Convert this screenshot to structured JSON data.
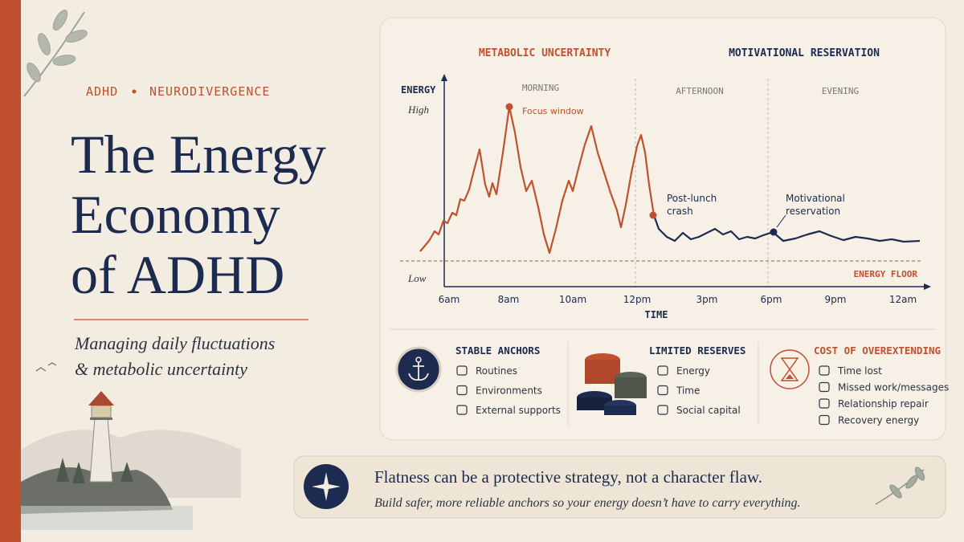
{
  "header": {
    "eyebrow": [
      "ADHD",
      "NEURODIVERGENCE"
    ],
    "title": [
      "The Energy",
      "Economy",
      "of ADHD"
    ],
    "subtitle": [
      "Managing daily fluctuations",
      "& metabolic uncertainty"
    ]
  },
  "chart": {
    "phases": [
      "METABOLIC UNCERTAINTY",
      "MOTIVATIONAL RESERVATION"
    ],
    "y_label": "ENERGY",
    "y_high": "High",
    "y_low": "Low",
    "periods": [
      "MORNING",
      "AFTERNOON",
      "EVENING"
    ],
    "x_ticks": [
      "6am",
      "8am",
      "10am",
      "12pm",
      "3pm",
      "6pm",
      "9pm",
      "12am"
    ],
    "x_label": "TIME",
    "floor_label": "ENERGY FLOOR",
    "annotations": {
      "focus": [
        "Focus window"
      ],
      "crash": [
        "Post-lunch",
        "crash"
      ],
      "reservation": [
        "Motivational",
        "reservation"
      ]
    }
  },
  "panels": [
    {
      "title": "STABLE ANCHORS",
      "items": [
        "Routines",
        "Environments",
        "External supports"
      ]
    },
    {
      "title": "LIMITED RESERVES",
      "items": [
        "Energy",
        "Time",
        "Social capital"
      ]
    },
    {
      "title": "COST OF OVEREXTENDING",
      "items": [
        "Time lost",
        "Missed work/messages",
        "Relationship repair",
        "Recovery energy"
      ]
    }
  ],
  "banner": {
    "headline": "Flatness can be a protective strategy, not a character flaw.",
    "subline": "Build safer, more reliable anchors so your energy doesn’t have to carry everything."
  }
}
